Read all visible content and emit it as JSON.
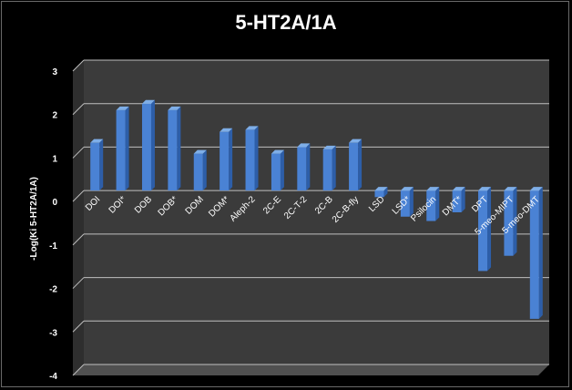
{
  "chart_data": {
    "type": "bar",
    "title": "5-HT2A/1A",
    "ylabel": "-Log(Ki 5-HT2A/1A)",
    "xlabel": "",
    "ylim": [
      -4,
      3
    ],
    "yticks": [
      "3",
      "2",
      "1",
      "0",
      "-1",
      "-2",
      "-3",
      "-4"
    ],
    "grid": true,
    "legend": "none",
    "categories": [
      "DOI",
      "DOI*",
      "DOB",
      "DOB*",
      "DOM",
      "DOM*",
      "Aleph-2",
      "2C-E",
      "2C-T-2",
      "2C-B",
      "2C-B-fly",
      "LSD",
      "LSD*",
      "Psilocin",
      "DMT*",
      "DPT",
      "5-meo-MIPT",
      "5-meo-DMT"
    ],
    "values": [
      1.1,
      1.85,
      2.0,
      1.85,
      0.85,
      1.35,
      1.4,
      0.85,
      1.0,
      0.95,
      1.1,
      -0.15,
      -0.6,
      -0.7,
      -0.5,
      -1.85,
      -1.5,
      -2.95
    ],
    "colors": {
      "bar": "#4a82d4",
      "bar_dark": "#2d5ea8",
      "bar_light": "#7eaee8",
      "wall": "#3b3b3b",
      "floor": "#505050",
      "grid": "#bfbfbf",
      "text": "#ffffff"
    }
  }
}
